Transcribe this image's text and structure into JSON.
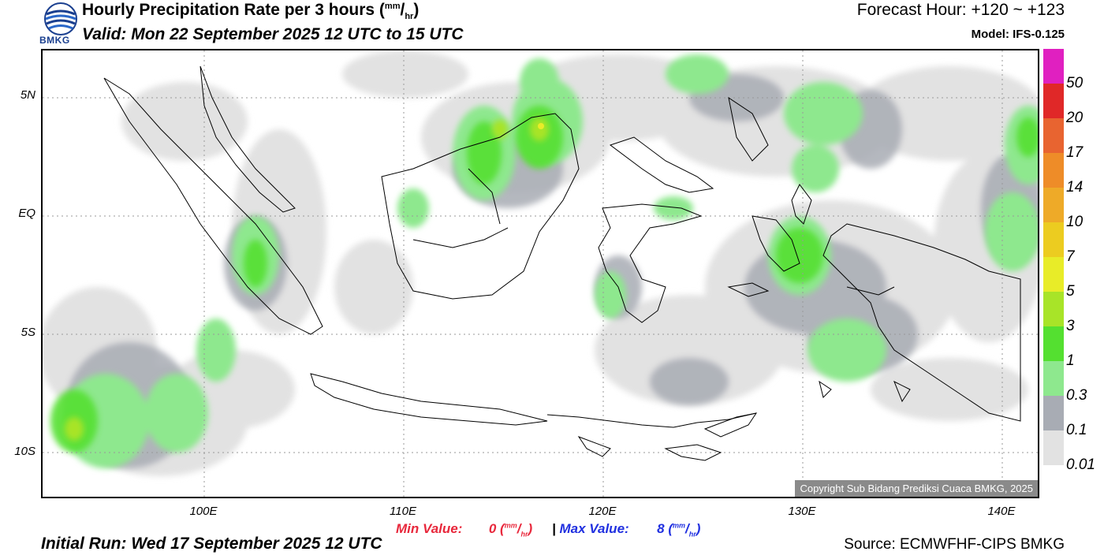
{
  "header": {
    "title": "Hourly Precipitation Rate per 3 hours",
    "title_unit_top": "mm",
    "title_unit_bottom": "hr",
    "valid": "Valid: Mon 22 September 2025 12 UTC to 15 UTC",
    "forecast_hour": "Forecast Hour: +120 ~ +123",
    "model": "Model: IFS-0.125",
    "logo_text": "BMKG"
  },
  "map": {
    "lat_labels": [
      "5N",
      "EQ",
      "5S",
      "10S"
    ],
    "lon_labels": [
      "100E",
      "110E",
      "120E",
      "130E",
      "140E"
    ],
    "copyright": "Copyright Sub Bidang Prediksi Cuaca BMKG, 2025"
  },
  "legend": {
    "bins": [
      {
        "color": "#e020c0",
        "label": "50"
      },
      {
        "color": "#e02828",
        "label": "20"
      },
      {
        "color": "#e86430",
        "label": "17"
      },
      {
        "color": "#ee8c28",
        "label": "14"
      },
      {
        "color": "#eeaa28",
        "label": "10"
      },
      {
        "color": "#eccc20",
        "label": "7"
      },
      {
        "color": "#e8ec28",
        "label": "5"
      },
      {
        "color": "#a8e428",
        "label": "3"
      },
      {
        "color": "#54e030",
        "label": "1"
      },
      {
        "color": "#8ee88e",
        "label": "0.3"
      },
      {
        "color": "#a8acb4",
        "label": "0.1"
      },
      {
        "color": "#e2e2e2",
        "label": "0.01"
      }
    ],
    "label_values": [
      "50",
      "20",
      "17",
      "14",
      "10",
      "7",
      "5",
      "3",
      "1",
      "0.3",
      "0.1",
      "0.01"
    ]
  },
  "footer": {
    "min_label": "Min Value:",
    "min_value": "0",
    "max_label": "Max Value:",
    "max_value": "8",
    "separator": "|",
    "unit_top": "mm",
    "unit_bottom": "hr",
    "initial_run": "Initial Run: Wed 17 September 2025 12 UTC",
    "source": "Source: ECMWFHF-CIPS BMKG"
  }
}
